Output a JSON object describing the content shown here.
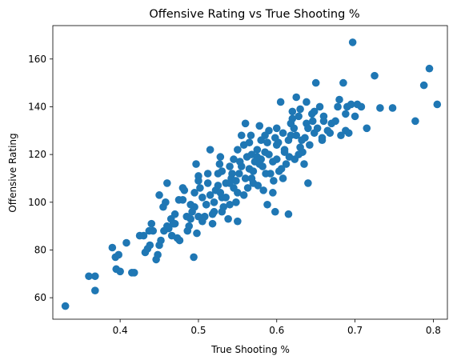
{
  "chart_data": {
    "type": "scatter",
    "title": "Offensive Rating vs True Shooting %",
    "xlabel": "True Shooting %",
    "ylabel": "Offensive Rating",
    "xlim": [
      0.314,
      0.818
    ],
    "ylim": [
      51,
      174
    ],
    "xticks": [
      0.4,
      0.5,
      0.6,
      0.7,
      0.8
    ],
    "xtick_labels": [
      "0.4",
      "0.5",
      "0.6",
      "0.7",
      "0.8"
    ],
    "yticks": [
      60,
      80,
      100,
      120,
      140,
      160
    ],
    "ytick_labels": [
      "60",
      "80",
      "100",
      "120",
      "140",
      "160"
    ],
    "grid": false,
    "marker_color": "#1f77b4",
    "series": [
      {
        "points": [
          [
            0.33,
            56.5
          ],
          [
            0.36,
            69
          ],
          [
            0.368,
            69
          ],
          [
            0.368,
            63
          ],
          [
            0.39,
            81
          ],
          [
            0.394,
            77
          ],
          [
            0.398,
            78
          ],
          [
            0.395,
            72
          ],
          [
            0.4,
            71
          ],
          [
            0.408,
            83
          ],
          [
            0.415,
            70.5
          ],
          [
            0.418,
            70.5
          ],
          [
            0.425,
            86
          ],
          [
            0.43,
            86
          ],
          [
            0.432,
            79
          ],
          [
            0.435,
            80.5
          ],
          [
            0.438,
            82
          ],
          [
            0.437,
            88
          ],
          [
            0.44,
            91
          ],
          [
            0.442,
            88
          ],
          [
            0.446,
            76
          ],
          [
            0.448,
            78
          ],
          [
            0.45,
            82
          ],
          [
            0.452,
            84
          ],
          [
            0.455,
            98
          ],
          [
            0.458,
            100
          ],
          [
            0.46,
            90
          ],
          [
            0.462,
            89
          ],
          [
            0.465,
            93
          ],
          [
            0.468,
            91
          ],
          [
            0.47,
            95
          ],
          [
            0.473,
            85
          ],
          [
            0.476,
            84
          ],
          [
            0.48,
            101
          ],
          [
            0.482,
            105
          ],
          [
            0.486,
            88
          ],
          [
            0.49,
            93
          ],
          [
            0.492,
            96
          ],
          [
            0.495,
            98
          ],
          [
            0.498,
            87
          ],
          [
            0.494,
            77
          ],
          [
            0.497,
            116
          ],
          [
            0.5,
            111
          ],
          [
            0.502,
            106
          ],
          [
            0.505,
            102
          ],
          [
            0.508,
            94
          ],
          [
            0.51,
            99
          ],
          [
            0.512,
            108
          ],
          [
            0.515,
            122
          ],
          [
            0.518,
            91
          ],
          [
            0.52,
            96
          ],
          [
            0.522,
            105
          ],
          [
            0.525,
            112
          ],
          [
            0.528,
            119
          ],
          [
            0.53,
            102
          ],
          [
            0.532,
            98
          ],
          [
            0.535,
            108
          ],
          [
            0.538,
            93
          ],
          [
            0.54,
            115
          ],
          [
            0.542,
            110
          ],
          [
            0.545,
            106
          ],
          [
            0.548,
            100
          ],
          [
            0.55,
            92
          ],
          [
            0.552,
            112
          ],
          [
            0.555,
            128
          ],
          [
            0.558,
            124
          ],
          [
            0.56,
            133
          ],
          [
            0.562,
            119
          ],
          [
            0.565,
            114
          ],
          [
            0.568,
            110
          ],
          [
            0.57,
            108
          ],
          [
            0.572,
            117
          ],
          [
            0.575,
            122
          ],
          [
            0.578,
            132
          ],
          [
            0.58,
            126
          ],
          [
            0.582,
            115
          ],
          [
            0.585,
            121
          ],
          [
            0.588,
            99
          ],
          [
            0.59,
            130
          ],
          [
            0.592,
            112
          ],
          [
            0.595,
            104
          ],
          [
            0.598,
            96
          ],
          [
            0.6,
            118
          ],
          [
            0.602,
            125
          ],
          [
            0.605,
            142
          ],
          [
            0.608,
            110
          ],
          [
            0.61,
            122
          ],
          [
            0.612,
            116
          ],
          [
            0.615,
            95
          ],
          [
            0.618,
            128
          ],
          [
            0.62,
            135
          ],
          [
            0.622,
            131
          ],
          [
            0.625,
            144
          ],
          [
            0.628,
            120
          ],
          [
            0.63,
            139
          ],
          [
            0.632,
            126
          ],
          [
            0.635,
            116
          ],
          [
            0.638,
            133
          ],
          [
            0.64,
            108
          ],
          [
            0.642,
            124
          ],
          [
            0.645,
            137
          ],
          [
            0.648,
            129
          ],
          [
            0.65,
            150
          ],
          [
            0.652,
            131
          ],
          [
            0.655,
            140
          ],
          [
            0.658,
            126
          ],
          [
            0.66,
            136
          ],
          [
            0.665,
            130
          ],
          [
            0.67,
            133
          ],
          [
            0.675,
            134
          ],
          [
            0.68,
            143
          ],
          [
            0.682,
            128
          ],
          [
            0.685,
            150
          ],
          [
            0.688,
            130
          ],
          [
            0.69,
            140
          ],
          [
            0.692,
            129
          ],
          [
            0.695,
            141
          ],
          [
            0.697,
            167
          ],
          [
            0.7,
            136
          ],
          [
            0.703,
            141
          ],
          [
            0.708,
            140
          ],
          [
            0.715,
            131
          ],
          [
            0.725,
            153
          ],
          [
            0.732,
            139.5
          ],
          [
            0.748,
            139.5
          ],
          [
            0.777,
            134
          ],
          [
            0.788,
            149
          ],
          [
            0.795,
            156
          ],
          [
            0.805,
            141
          ],
          [
            0.47,
            91
          ],
          [
            0.485,
            94
          ],
          [
            0.51,
            99
          ],
          [
            0.515,
            103
          ],
          [
            0.525,
            107
          ],
          [
            0.535,
            102
          ],
          [
            0.55,
            104
          ],
          [
            0.56,
            110
          ],
          [
            0.57,
            113
          ],
          [
            0.58,
            118
          ],
          [
            0.59,
            120
          ],
          [
            0.6,
            124
          ],
          [
            0.615,
            126
          ],
          [
            0.625,
            128
          ],
          [
            0.64,
            131
          ],
          [
            0.66,
            134
          ],
          [
            0.505,
            92
          ],
          [
            0.52,
            100
          ],
          [
            0.54,
            108
          ],
          [
            0.555,
            115
          ],
          [
            0.575,
            119
          ],
          [
            0.595,
            117
          ],
          [
            0.61,
            121
          ],
          [
            0.63,
            123
          ],
          [
            0.5,
            109
          ],
          [
            0.53,
            113
          ],
          [
            0.545,
            118
          ],
          [
            0.565,
            125
          ],
          [
            0.585,
            128
          ],
          [
            0.6,
            131
          ],
          [
            0.62,
            138
          ],
          [
            0.55,
            122
          ],
          [
            0.567,
            128
          ],
          [
            0.576,
            107
          ],
          [
            0.586,
            112
          ],
          [
            0.596,
            109
          ],
          [
            0.606,
            114
          ],
          [
            0.616,
            119
          ],
          [
            0.636,
            127
          ],
          [
            0.646,
            134
          ],
          [
            0.475,
            101
          ],
          [
            0.495,
            104
          ],
          [
            0.512,
            112
          ],
          [
            0.527,
            116
          ],
          [
            0.543,
            112
          ],
          [
            0.553,
            117
          ],
          [
            0.563,
            106
          ],
          [
            0.583,
            105
          ],
          [
            0.603,
            113
          ],
          [
            0.623,
            118
          ],
          [
            0.633,
            121
          ],
          [
            0.456,
            88
          ],
          [
            0.466,
            86
          ],
          [
            0.488,
            90
          ],
          [
            0.5,
            94
          ],
          [
            0.53,
            96
          ],
          [
            0.54,
            99
          ],
          [
            0.45,
            103
          ],
          [
            0.46,
            108
          ],
          [
            0.48,
            106
          ],
          [
            0.49,
            99
          ],
          [
            0.518,
            95
          ],
          [
            0.528,
            104
          ],
          [
            0.548,
            109
          ],
          [
            0.558,
            103
          ],
          [
            0.568,
            120
          ],
          [
            0.578,
            116
          ],
          [
            0.588,
            125
          ],
          [
            0.598,
            127
          ],
          [
            0.608,
            129
          ],
          [
            0.618,
            133
          ],
          [
            0.628,
            136
          ],
          [
            0.638,
            142
          ],
          [
            0.648,
            138
          ],
          [
            0.658,
            127
          ],
          [
            0.668,
            129
          ],
          [
            0.678,
            140
          ],
          [
            0.688,
            137
          ]
        ]
      }
    ]
  }
}
